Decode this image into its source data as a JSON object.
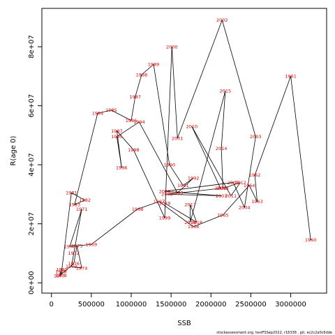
{
  "chart_data": {
    "type": "line",
    "xlabel": "SSB",
    "ylabel": "R(age 0)",
    "xlim": [
      -120000,
      3450000
    ],
    "ylim": [
      -3500000,
      93000000
    ],
    "x_ticks": [
      {
        "value": 0,
        "label": "0"
      },
      {
        "value": 500000,
        "label": "500000"
      },
      {
        "value": 1000000,
        "label": "1000000"
      },
      {
        "value": 1500000,
        "label": "1500000"
      },
      {
        "value": 2000000,
        "label": "2000000"
      },
      {
        "value": 2500000,
        "label": "2500000"
      },
      {
        "value": 3000000,
        "label": "3000000"
      }
    ],
    "y_ticks": [
      {
        "value": 0,
        "label": "0e+00"
      },
      {
        "value": 20000000,
        "label": "2e+07"
      },
      {
        "value": 40000000,
        "label": "4e+07"
      },
      {
        "value": 60000000,
        "label": "6e+07"
      },
      {
        "value": 80000000,
        "label": "8e+07"
      }
    ],
    "series": [
      {
        "label_color": "#dd0000",
        "line_color": "#000000",
        "points": [
          {
            "year": "1960",
            "x": 3250000,
            "y": 14500000
          },
          {
            "year": "1961",
            "x": 3000000,
            "y": 70000000
          },
          {
            "year": "1962",
            "x": 2550000,
            "y": 36500000
          },
          {
            "year": "1963",
            "x": 2580000,
            "y": 27500000
          },
          {
            "year": "1964",
            "x": 2480000,
            "y": 33000000
          },
          {
            "year": "1965",
            "x": 2150000,
            "y": 23000000
          },
          {
            "year": "1966",
            "x": 1780000,
            "y": 19000000
          },
          {
            "year": "1967",
            "x": 1350000,
            "y": 27500000
          },
          {
            "year": "1968",
            "x": 1080000,
            "y": 25000000
          },
          {
            "year": "1969",
            "x": 500000,
            "y": 13000000
          },
          {
            "year": "1970",
            "x": 230000,
            "y": 12300000
          },
          {
            "year": "1971",
            "x": 380000,
            "y": 25000000
          },
          {
            "year": "1972",
            "x": 280000,
            "y": 10000000
          },
          {
            "year": "1973",
            "x": 250000,
            "y": 5500000
          },
          {
            "year": "1974",
            "x": 380000,
            "y": 5000000
          },
          {
            "year": "1975",
            "x": 320000,
            "y": 12500000
          },
          {
            "year": "1976",
            "x": 280000,
            "y": 6500000
          },
          {
            "year": "1977",
            "x": 100000,
            "y": 2400000
          },
          {
            "year": "1978",
            "x": 120000,
            "y": 3800000
          },
          {
            "year": "1979",
            "x": 120000,
            "y": 2500000
          },
          {
            "year": "1980",
            "x": 130000,
            "y": 4500000
          },
          {
            "year": "1981",
            "x": 250000,
            "y": 30500000
          },
          {
            "year": "1982",
            "x": 420000,
            "y": 28000000
          },
          {
            "year": "1983",
            "x": 290000,
            "y": 26500000
          },
          {
            "year": "1984",
            "x": 580000,
            "y": 57500000
          },
          {
            "year": "1985",
            "x": 750000,
            "y": 58500000
          },
          {
            "year": "1986",
            "x": 1000000,
            "y": 55000000
          },
          {
            "year": "1987",
            "x": 1050000,
            "y": 63000000
          },
          {
            "year": "1988",
            "x": 1130000,
            "y": 70500000
          },
          {
            "year": "1989",
            "x": 1280000,
            "y": 74000000
          },
          {
            "year": "1990",
            "x": 1480000,
            "y": 40000000
          },
          {
            "year": "1991",
            "x": 1650000,
            "y": 33000000
          },
          {
            "year": "1992",
            "x": 1780000,
            "y": 35500000
          },
          {
            "year": "1993",
            "x": 1580000,
            "y": 30500000
          },
          {
            "year": "1994",
            "x": 1100000,
            "y": 54500000
          },
          {
            "year": "1995",
            "x": 820000,
            "y": 49500000
          },
          {
            "year": "1996",
            "x": 880000,
            "y": 39000000
          },
          {
            "year": "1997",
            "x": 820000,
            "y": 51500000
          },
          {
            "year": "1998",
            "x": 1030000,
            "y": 45000000
          },
          {
            "year": "1999",
            "x": 1420000,
            "y": 22000000
          },
          {
            "year": "2000",
            "x": 1510000,
            "y": 80000000
          },
          {
            "year": "2001",
            "x": 1580000,
            "y": 49000000
          },
          {
            "year": "2002",
            "x": 2140000,
            "y": 89000000
          },
          {
            "year": "2003",
            "x": 2560000,
            "y": 49500000
          },
          {
            "year": "2004",
            "x": 2420000,
            "y": 25500000
          },
          {
            "year": "2005",
            "x": 2280000,
            "y": 34000000
          },
          {
            "year": "2006",
            "x": 1420000,
            "y": 31000000
          },
          {
            "year": "2007",
            "x": 2130000,
            "y": 29500000
          },
          {
            "year": "2008",
            "x": 1450000,
            "y": 30000000
          },
          {
            "year": "2009",
            "x": 2120000,
            "y": 32000000
          },
          {
            "year": "2010",
            "x": 1760000,
            "y": 53000000
          },
          {
            "year": "2011",
            "x": 2250000,
            "y": 29500000
          },
          {
            "year": "2012",
            "x": 2370000,
            "y": 34000000
          },
          {
            "year": "2013",
            "x": 2150000,
            "y": 32000000
          },
          {
            "year": "2014",
            "x": 2130000,
            "y": 45500000
          },
          {
            "year": "2015",
            "x": 2180000,
            "y": 65000000
          },
          {
            "year": "2016",
            "x": 1740000,
            "y": 20500000
          },
          {
            "year": "2017",
            "x": 1740000,
            "y": 26500000
          },
          {
            "year": "2018",
            "x": 1820000,
            "y": 20500000
          },
          {
            "year": "2019",
            "x": 1420000,
            "y": 27000000
          }
        ],
        "path_order": [
          "1960",
          "1961",
          "1962",
          "1963",
          "1964",
          "1965",
          "1966",
          "1967",
          "1968",
          "1969",
          "1970",
          "1971",
          "1972",
          "1973",
          "1974",
          "1975",
          "1976",
          "1977",
          "1978",
          "1979",
          "1980",
          "1981",
          "1982",
          "1983",
          "1984",
          "1985",
          "1986",
          "1987",
          "1988",
          "1989",
          "1990",
          "1991",
          "1992",
          "1993",
          "1994",
          "1995",
          "1996",
          "1997",
          "1998",
          "1999",
          "2000",
          "2001",
          "2002",
          "2003",
          "2004",
          "2005",
          "2006",
          "2007",
          "2008",
          "2009",
          "2010",
          "2011",
          "2012",
          "2013",
          "2014",
          "2015",
          "2016",
          "2017",
          "2018",
          "2019"
        ]
      }
    ],
    "footer": "stockassessment.org, testFSSep2022, r16338 , git: ec2c2a0c6dde"
  }
}
